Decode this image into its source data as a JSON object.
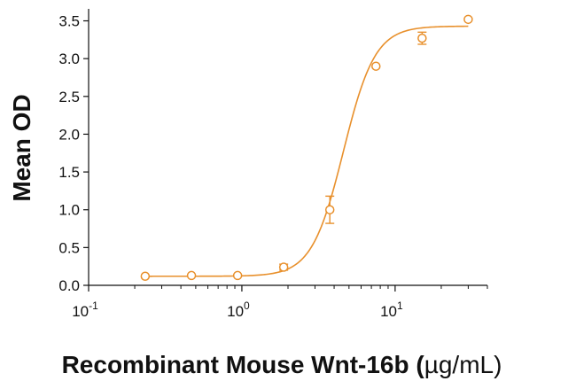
{
  "chart_data": {
    "type": "scatter",
    "xlabel_main": "Recombinant Mouse Wnt-16b (",
    "xlabel_unit": "µg/mL)",
    "ylabel": "Mean OD",
    "x_scale": "log",
    "xlim": [
      0.1,
      40
    ],
    "ylim": [
      0,
      3.6
    ],
    "x_ticks": [
      {
        "value": 0.1,
        "base": "10",
        "exp": "-1"
      },
      {
        "value": 1,
        "base": "10",
        "exp": "0"
      },
      {
        "value": 10,
        "base": "10",
        "exp": "1"
      }
    ],
    "y_ticks": [
      {
        "value": 0.0,
        "label": "0.0"
      },
      {
        "value": 0.5,
        "label": "0.5"
      },
      {
        "value": 1.0,
        "label": "1.0"
      },
      {
        "value": 1.5,
        "label": "1.5"
      },
      {
        "value": 2.0,
        "label": "2.0"
      },
      {
        "value": 2.5,
        "label": "2.5"
      },
      {
        "value": 3.0,
        "label": "3.0"
      },
      {
        "value": 3.5,
        "label": "3.5"
      }
    ],
    "color": "#e8902c",
    "points": [
      {
        "x": 0.234,
        "y": 0.12,
        "err": 0.0
      },
      {
        "x": 0.469,
        "y": 0.13,
        "err": 0.0
      },
      {
        "x": 0.938,
        "y": 0.13,
        "err": 0.0
      },
      {
        "x": 1.875,
        "y": 0.24,
        "err": 0.04
      },
      {
        "x": 3.75,
        "y": 1.0,
        "err": 0.18
      },
      {
        "x": 7.5,
        "y": 2.9,
        "err": 0.0
      },
      {
        "x": 15,
        "y": 3.27,
        "err": 0.08
      },
      {
        "x": 30,
        "y": 3.52,
        "err": 0.0
      }
    ],
    "fit": {
      "bottom": 0.12,
      "top": 3.43,
      "ec50": 4.6,
      "hill": 4.2
    },
    "grid": false,
    "legend": "none"
  }
}
